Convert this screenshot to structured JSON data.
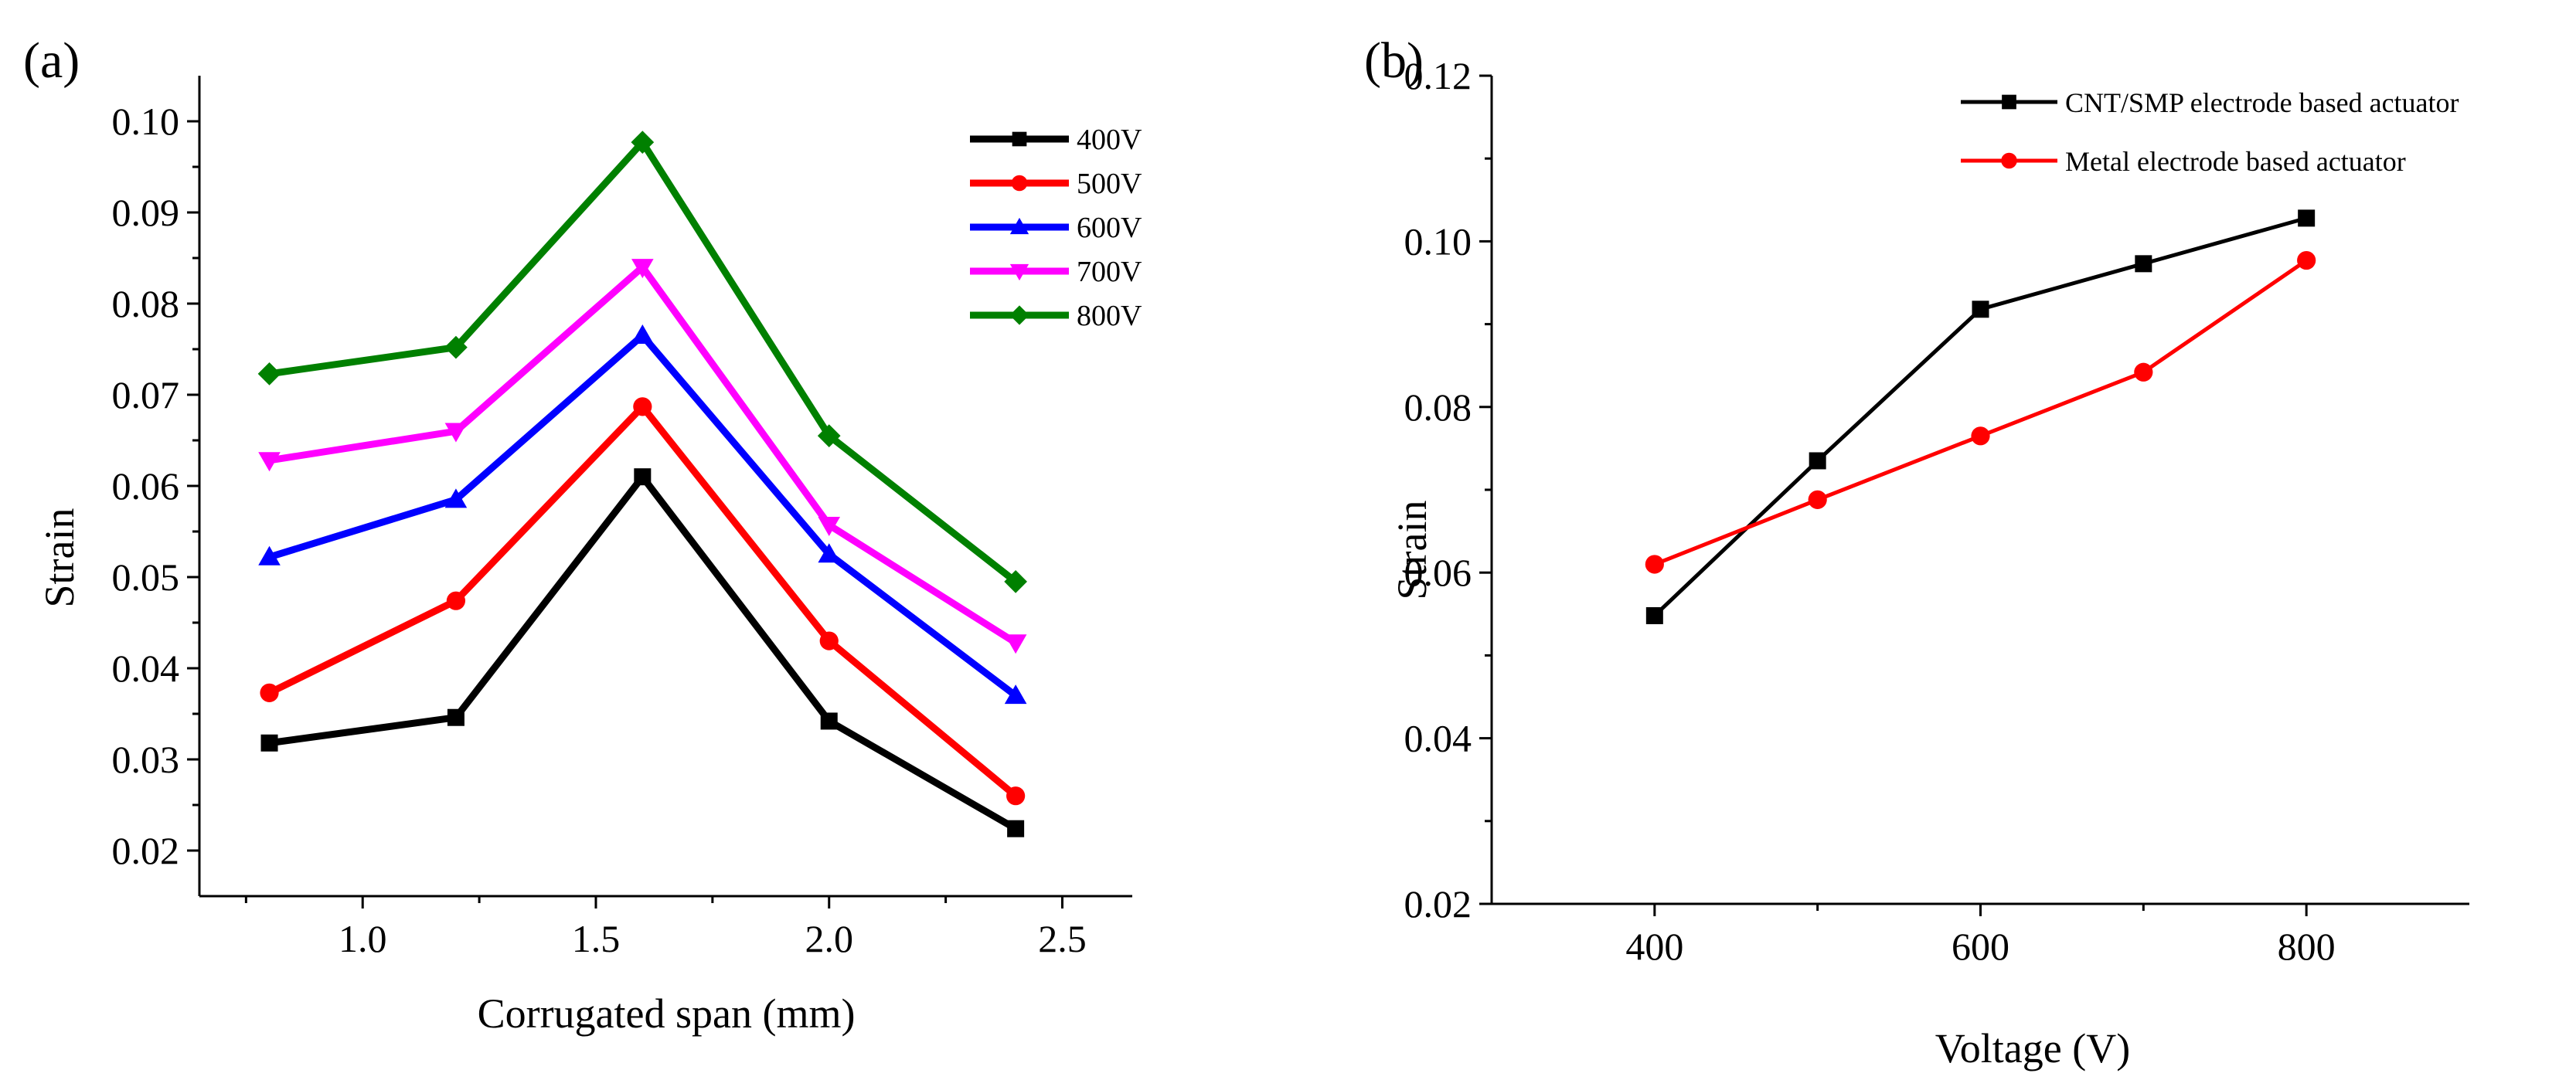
{
  "figure": {
    "panels": [
      {
        "label": "(a)"
      },
      {
        "label": "(b)"
      }
    ]
  },
  "chart_data": [
    {
      "type": "line",
      "panel": "(a)",
      "xlabel": "Corrugated span (mm)",
      "ylabel": "Strain",
      "xlim": [
        0.65,
        2.65
      ],
      "ylim": [
        0.015,
        0.105
      ],
      "xticks": [
        "1.0",
        "1.5",
        "2.0",
        "2.5"
      ],
      "yticks": [
        "0.02",
        "0.03",
        "0.04",
        "0.05",
        "0.06",
        "0.07",
        "0.08",
        "0.09",
        "0.10"
      ],
      "legend_position": "top-right",
      "x": [
        0.8,
        1.2,
        1.6,
        2.0,
        2.4
      ],
      "series": [
        {
          "name": "400V",
          "color": "#000000",
          "marker": "square",
          "values": [
            0.0318,
            0.0346,
            0.061,
            0.0342,
            0.0224
          ]
        },
        {
          "name": "500V",
          "color": "#ff0000",
          "marker": "circle",
          "values": [
            0.0373,
            0.0474,
            0.0687,
            0.043,
            0.026
          ]
        },
        {
          "name": "600V",
          "color": "#0000ff",
          "marker": "triangle-up",
          "values": [
            0.0522,
            0.0585,
            0.0765,
            0.0525,
            0.037
          ]
        },
        {
          "name": "700V",
          "color": "#ff00ff",
          "marker": "triangle-down",
          "values": [
            0.0628,
            0.066,
            0.084,
            0.0557,
            0.0428
          ]
        },
        {
          "name": "800V",
          "color": "#008000",
          "marker": "diamond",
          "values": [
            0.0723,
            0.0752,
            0.0977,
            0.0655,
            0.0495
          ]
        }
      ]
    },
    {
      "type": "line",
      "panel": "(b)",
      "xlabel": "Voltage (V)",
      "ylabel": "Strain",
      "xlim": [
        300,
        900
      ],
      "ylim": [
        0.02,
        0.12
      ],
      "xticks": [
        "400",
        "600",
        "800"
      ],
      "yticks": [
        "0.02",
        "0.04",
        "0.06",
        "0.08",
        "0.10",
        "0.12"
      ],
      "legend_position": "top-right",
      "x": [
        400,
        500,
        600,
        700,
        800
      ],
      "series": [
        {
          "name": "CNT/SMP electrode based actuator",
          "color": "#000000",
          "marker": "square",
          "values": [
            0.0548,
            0.0735,
            0.0918,
            0.0973,
            0.1028
          ]
        },
        {
          "name": "Metal electrode based actuator",
          "color": "#ff0000",
          "marker": "circle",
          "values": [
            0.061,
            0.0688,
            0.0765,
            0.0842,
            0.0977
          ]
        }
      ]
    }
  ]
}
